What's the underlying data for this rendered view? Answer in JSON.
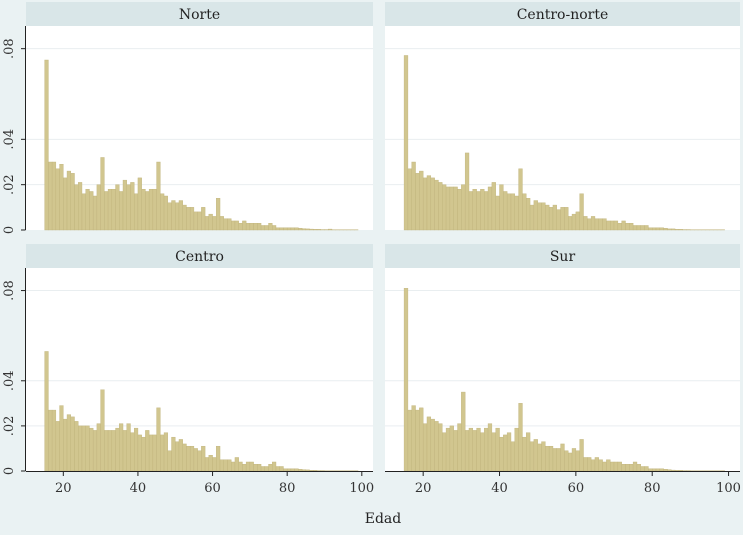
{
  "chart_data": {
    "type": "bar",
    "subtype": "histogram-faceted",
    "xlabel": "Edad",
    "ylabel": "",
    "xlim": [
      10,
      103
    ],
    "ylim": [
      0,
      0.09
    ],
    "x_ticks": [
      20,
      40,
      60,
      80,
      100
    ],
    "y_ticks": [
      0,
      0.02,
      0.04,
      0.08
    ],
    "y_tick_labels": [
      "0",
      ".02",
      ".04",
      ".08"
    ],
    "grid": true,
    "bin_start": 15,
    "bin_width": 1,
    "colors": {
      "bar": "#d1c68f",
      "bar_edge": "#bfb27a",
      "panel_bg": "#ffffff",
      "page_bg": "#eaf2f3",
      "strip_bg": "#d9e6e8"
    },
    "panels": [
      {
        "name": "Norte",
        "values": [
          0.075,
          0.03,
          0.03,
          0.027,
          0.029,
          0.023,
          0.026,
          0.025,
          0.02,
          0.021,
          0.016,
          0.018,
          0.017,
          0.015,
          0.02,
          0.032,
          0.017,
          0.018,
          0.018,
          0.02,
          0.017,
          0.022,
          0.02,
          0.021,
          0.016,
          0.023,
          0.018,
          0.017,
          0.018,
          0.018,
          0.03,
          0.016,
          0.015,
          0.012,
          0.013,
          0.012,
          0.013,
          0.011,
          0.01,
          0.01,
          0.008,
          0.008,
          0.01,
          0.006,
          0.007,
          0.006,
          0.014,
          0.006,
          0.005,
          0.005,
          0.004,
          0.004,
          0.003,
          0.004,
          0.003,
          0.003,
          0.003,
          0.003,
          0.002,
          0.002,
          0.003,
          0.002,
          0.001,
          0.001,
          0.001,
          0.001,
          0.001,
          0.001,
          0.0008,
          0.0006,
          0.0005,
          0.0004,
          0.0003,
          0.0003,
          0.0002,
          0.0002,
          0.0004,
          0.0001,
          0.0001,
          0.0001,
          0.0001,
          0.0001,
          0.0001,
          0.0001
        ]
      },
      {
        "name": "Centro-norte",
        "values": [
          0.077,
          0.027,
          0.03,
          0.025,
          0.026,
          0.023,
          0.024,
          0.023,
          0.022,
          0.021,
          0.02,
          0.019,
          0.019,
          0.019,
          0.018,
          0.02,
          0.034,
          0.017,
          0.018,
          0.017,
          0.018,
          0.017,
          0.019,
          0.021,
          0.015,
          0.02,
          0.017,
          0.016,
          0.016,
          0.015,
          0.027,
          0.016,
          0.014,
          0.011,
          0.013,
          0.012,
          0.012,
          0.011,
          0.01,
          0.011,
          0.009,
          0.01,
          0.01,
          0.006,
          0.007,
          0.008,
          0.016,
          0.006,
          0.005,
          0.006,
          0.005,
          0.005,
          0.005,
          0.004,
          0.004,
          0.004,
          0.003,
          0.004,
          0.003,
          0.003,
          0.002,
          0.002,
          0.002,
          0.002,
          0.001,
          0.001,
          0.001,
          0.001,
          0.0008,
          0.0005,
          0.0005,
          0.0003,
          0.0003,
          0.0002,
          0.0002,
          0.0001,
          0.0001,
          0.0001,
          0.0001,
          0.0001,
          0.0001,
          0.0001,
          0.0001,
          0.0001
        ]
      },
      {
        "name": "Centro",
        "values": [
          0.053,
          0.027,
          0.027,
          0.022,
          0.029,
          0.023,
          0.025,
          0.024,
          0.022,
          0.02,
          0.02,
          0.02,
          0.019,
          0.018,
          0.021,
          0.036,
          0.018,
          0.018,
          0.018,
          0.019,
          0.021,
          0.018,
          0.021,
          0.017,
          0.019,
          0.016,
          0.015,
          0.018,
          0.016,
          0.016,
          0.028,
          0.016,
          0.017,
          0.009,
          0.015,
          0.013,
          0.014,
          0.012,
          0.011,
          0.011,
          0.01,
          0.009,
          0.011,
          0.006,
          0.007,
          0.006,
          0.011,
          0.005,
          0.005,
          0.005,
          0.004,
          0.006,
          0.004,
          0.003,
          0.004,
          0.004,
          0.003,
          0.003,
          0.002,
          0.002,
          0.003,
          0.004,
          0.002,
          0.002,
          0.001,
          0.001,
          0.001,
          0.001,
          0.0008,
          0.0006,
          0.0005,
          0.0003,
          0.0003,
          0.0002,
          0.0002,
          0.0001,
          0.0001,
          0.0001,
          0.0001,
          0.0001,
          0.0001,
          0.0001,
          0.0001,
          0.0001
        ]
      },
      {
        "name": "Sur",
        "values": [
          0.081,
          0.027,
          0.029,
          0.027,
          0.028,
          0.021,
          0.024,
          0.023,
          0.022,
          0.021,
          0.017,
          0.019,
          0.02,
          0.018,
          0.021,
          0.035,
          0.018,
          0.019,
          0.018,
          0.019,
          0.017,
          0.019,
          0.021,
          0.017,
          0.019,
          0.015,
          0.016,
          0.017,
          0.013,
          0.019,
          0.03,
          0.015,
          0.017,
          0.013,
          0.014,
          0.012,
          0.013,
          0.011,
          0.011,
          0.01,
          0.01,
          0.012,
          0.009,
          0.008,
          0.01,
          0.009,
          0.014,
          0.006,
          0.006,
          0.005,
          0.006,
          0.005,
          0.004,
          0.005,
          0.004,
          0.004,
          0.004,
          0.003,
          0.003,
          0.003,
          0.004,
          0.003,
          0.002,
          0.002,
          0.001,
          0.001,
          0.001,
          0.001,
          0.0008,
          0.0006,
          0.0004,
          0.0003,
          0.0003,
          0.0002,
          0.0002,
          0.0001,
          0.0001,
          0.0001,
          0.0001,
          0.0001,
          0.0001,
          0.0001,
          0.0001,
          0.0001
        ]
      }
    ]
  }
}
